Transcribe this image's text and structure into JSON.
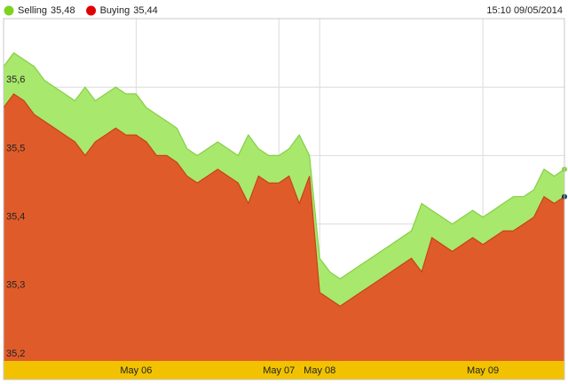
{
  "chart_data": {
    "type": "area",
    "timestamp": "15:10 09/05/2014",
    "categories": [
      null,
      null,
      null,
      null,
      null,
      null,
      null,
      null,
      null,
      null,
      null,
      null,
      null,
      "May 06",
      null,
      null,
      null,
      null,
      null,
      null,
      null,
      null,
      null,
      null,
      null,
      null,
      null,
      "May 07",
      null,
      null,
      null,
      "May 08",
      null,
      null,
      null,
      null,
      null,
      null,
      null,
      null,
      null,
      null,
      null,
      null,
      null,
      null,
      null,
      "May 09",
      null,
      null,
      null,
      null,
      null,
      null,
      null,
      null
    ],
    "series": [
      {
        "name": "Selling",
        "last_label": "35,48",
        "color": "#a8e86c",
        "line_color": "#86cf45",
        "marker_color": "#7ed321",
        "values": [
          35.63,
          35.65,
          35.64,
          35.63,
          35.61,
          35.6,
          35.59,
          35.58,
          35.6,
          35.58,
          35.59,
          35.6,
          35.59,
          35.59,
          35.57,
          35.56,
          35.55,
          35.54,
          35.51,
          35.5,
          35.51,
          35.52,
          35.51,
          35.5,
          35.53,
          35.51,
          35.5,
          35.5,
          35.51,
          35.53,
          35.5,
          35.35,
          35.33,
          35.32,
          35.33,
          35.34,
          35.35,
          35.36,
          35.37,
          35.38,
          35.39,
          35.43,
          35.42,
          35.41,
          35.4,
          35.41,
          35.42,
          35.41,
          35.42,
          35.43,
          35.44,
          35.44,
          35.45,
          35.48,
          35.47,
          35.48
        ]
      },
      {
        "name": "Buying",
        "last_label": "35,44",
        "color": "#df5c2a",
        "line_color": "#c9401b",
        "marker_color": "#e00000",
        "values": [
          35.57,
          35.59,
          35.58,
          35.56,
          35.55,
          35.54,
          35.53,
          35.52,
          35.5,
          35.52,
          35.53,
          35.54,
          35.53,
          35.53,
          35.52,
          35.5,
          35.5,
          35.49,
          35.47,
          35.46,
          35.47,
          35.48,
          35.47,
          35.46,
          35.43,
          35.47,
          35.46,
          35.46,
          35.47,
          35.43,
          35.47,
          35.3,
          35.29,
          35.28,
          35.29,
          35.3,
          35.31,
          35.32,
          35.33,
          35.34,
          35.35,
          35.33,
          35.38,
          35.37,
          35.36,
          35.37,
          35.38,
          35.37,
          35.38,
          35.39,
          35.39,
          35.4,
          35.41,
          35.44,
          35.43,
          35.44
        ]
      }
    ],
    "ylim": [
      35.2,
      35.7
    ],
    "yticks": [
      {
        "value": 35.2,
        "label": "35,2"
      },
      {
        "value": 35.3,
        "label": "35,3"
      },
      {
        "value": 35.4,
        "label": "35,4"
      },
      {
        "value": 35.5,
        "label": "35,5"
      },
      {
        "value": 35.6,
        "label": "35,6"
      }
    ],
    "grid": true
  }
}
